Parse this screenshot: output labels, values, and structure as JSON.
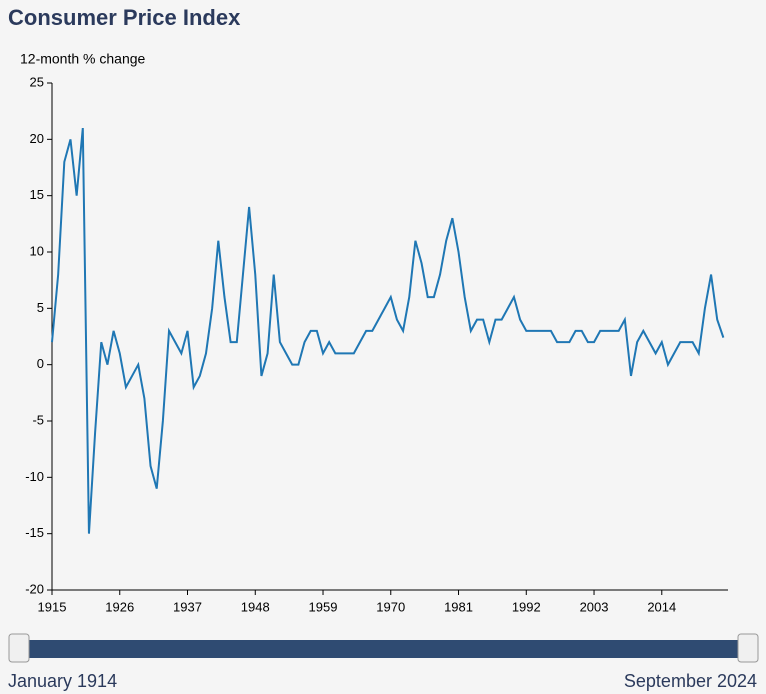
{
  "chart_data": {
    "type": "line",
    "title": "Consumer Price Index",
    "y_label": "12-month % change",
    "x": [
      1915,
      1916,
      1917,
      1918,
      1919,
      1920,
      1921,
      1922,
      1923,
      1924,
      1925,
      1926,
      1927,
      1928,
      1929,
      1930,
      1931,
      1932,
      1933,
      1934,
      1935,
      1936,
      1937,
      1938,
      1939,
      1940,
      1941,
      1942,
      1943,
      1944,
      1945,
      1946,
      1947,
      1948,
      1949,
      1950,
      1951,
      1952,
      1953,
      1954,
      1955,
      1956,
      1957,
      1958,
      1959,
      1960,
      1961,
      1962,
      1963,
      1964,
      1965,
      1966,
      1967,
      1968,
      1969,
      1970,
      1971,
      1972,
      1973,
      1974,
      1975,
      1976,
      1977,
      1978,
      1979,
      1980,
      1981,
      1982,
      1983,
      1984,
      1985,
      1986,
      1987,
      1988,
      1989,
      1990,
      1991,
      1992,
      1993,
      1994,
      1995,
      1996,
      1997,
      1998,
      1999,
      2000,
      2001,
      2002,
      2003,
      2004,
      2005,
      2006,
      2007,
      2008,
      2009,
      2010,
      2011,
      2012,
      2013,
      2014,
      2015,
      2016,
      2017,
      2018,
      2019,
      2020,
      2021,
      2022,
      2023,
      2024
    ],
    "series": [
      {
        "name": "12-month % change",
        "color": "#1f77b4",
        "values": [
          2,
          8,
          18,
          20,
          15,
          21,
          -15,
          -6,
          2,
          0,
          3,
          1,
          -2,
          -1,
          0,
          -3,
          -9,
          -11,
          -5,
          3,
          2,
          1,
          3,
          -2,
          -1,
          1,
          5,
          11,
          6,
          2,
          2,
          8,
          14,
          8,
          -1,
          1,
          8,
          2,
          1,
          0,
          0,
          2,
          3,
          3,
          1,
          2,
          1,
          1,
          1,
          1,
          2,
          3,
          3,
          4,
          5,
          6,
          4,
          3,
          6,
          11,
          9,
          6,
          6,
          8,
          11,
          13,
          10,
          6,
          3,
          4,
          4,
          2,
          4,
          4,
          5,
          6,
          4,
          3,
          3,
          3,
          3,
          3,
          2,
          2,
          2,
          3,
          3,
          2,
          2,
          3,
          3,
          3,
          3,
          4,
          -1,
          2,
          3,
          2,
          1,
          2,
          0,
          1,
          2,
          2,
          2,
          1,
          5,
          8,
          4,
          2.4
        ]
      }
    ],
    "xlim": [
      1915,
      2024.75
    ],
    "xticks": [
      1915,
      1926,
      1937,
      1948,
      1959,
      1970,
      1981,
      1992,
      2003,
      2014
    ],
    "ylim": [
      -20,
      25
    ],
    "yticks": [
      -20,
      -15,
      -10,
      -5,
      0,
      5,
      10,
      15,
      20,
      25
    ]
  },
  "slider": {
    "start": "January 1914",
    "end": "September 2024"
  }
}
